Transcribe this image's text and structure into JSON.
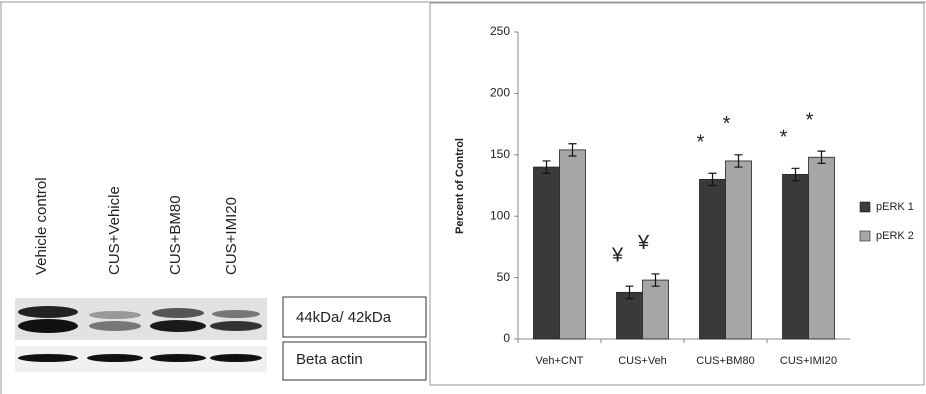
{
  "blot": {
    "lanes": [
      "Vehicle control",
      "CUS+Vehicle",
      "CUS+BM80",
      "CUS+IMI20"
    ],
    "bands": [
      "44kDa/ 42kDa",
      "Beta actin"
    ]
  },
  "chart_data": {
    "type": "bar",
    "ylabel": "Percent of Control",
    "categories": [
      "Veh+CNT",
      "CUS+Veh",
      "CUS+BM80",
      "CUS+IMI20"
    ],
    "series": [
      {
        "name": "pERK 1",
        "color": "#3a3a3a",
        "values": [
          140,
          38,
          130,
          134
        ],
        "errors": [
          5,
          5,
          5,
          5
        ],
        "markers": [
          null,
          "¥",
          "*",
          "*"
        ]
      },
      {
        "name": "pERK 2",
        "color": "#a6a6a6",
        "values": [
          154,
          48,
          145,
          148
        ],
        "errors": [
          5,
          5,
          5,
          5
        ],
        "markers": [
          null,
          "¥",
          "*",
          "*"
        ]
      }
    ],
    "ylim": [
      0,
      250
    ],
    "yticks": [
      0,
      50,
      100,
      150,
      200,
      250
    ],
    "legend": "right"
  }
}
